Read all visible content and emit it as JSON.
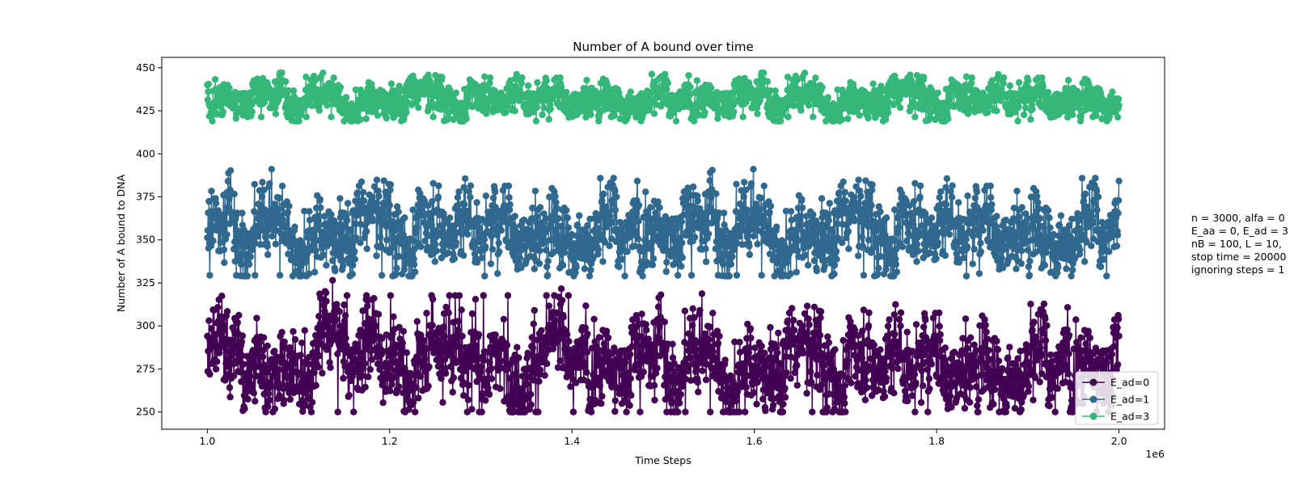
{
  "chart_data": {
    "type": "line",
    "title": "Number of A bound over time",
    "xlabel": "Time Steps",
    "ylabel": "Number of A bound to DNA",
    "x_offset_label": "1e6",
    "xlim": [
      950000,
      2050000
    ],
    "ylim": [
      240,
      456
    ],
    "x_ticks": [
      1000000,
      1200000,
      1400000,
      1600000,
      1800000,
      2000000
    ],
    "x_tick_labels": [
      "1.0",
      "1.2",
      "1.4",
      "1.6",
      "1.8",
      "2.0"
    ],
    "y_ticks": [
      250,
      275,
      300,
      325,
      350,
      375,
      400,
      425,
      450
    ],
    "y_tick_labels": [
      "250",
      "275",
      "300",
      "325",
      "350",
      "375",
      "400",
      "425",
      "450"
    ],
    "x_range": [
      1000000,
      2000000
    ],
    "marker": "circle",
    "grid": false,
    "legend_position": "lower-right",
    "series": [
      {
        "name": "E_ad=0",
        "color": "#440154",
        "mean": 283,
        "spread_min": 250,
        "spread_max": 327,
        "band": [
          262,
          308
        ]
      },
      {
        "name": "E_ad=1",
        "color": "#31688e",
        "mean": 360,
        "spread_min": 329,
        "spread_max": 397,
        "band": [
          340,
          380
        ]
      },
      {
        "name": "E_ad=3",
        "color": "#35b779",
        "mean": 434,
        "spread_min": 419,
        "spread_max": 447,
        "band": [
          424,
          443
        ]
      }
    ],
    "annotation_lines": [
      "n = 3000, alfa = 0",
      "E_aa = 0, E_ad = 3",
      "nB = 100, L = 10,",
      "stop time = 20000",
      "ignoring steps = 1"
    ]
  }
}
